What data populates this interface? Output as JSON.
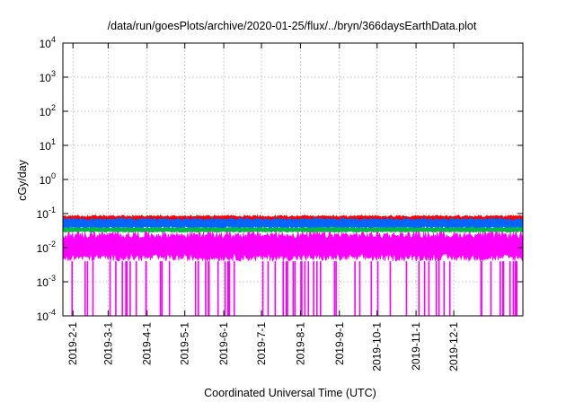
{
  "chart_data": {
    "type": "line",
    "title": "/data/run/goesPlots/archive/2020-01-25/flux/../bryn/366daysEarthData.plot",
    "xlabel": "Coordinated Universal Time (UTC)",
    "ylabel": "cGy/day",
    "yscale": "log",
    "ylim": [
      0.0001,
      10000
    ],
    "y_ticks": [
      {
        "value": 0.0001,
        "base": "10",
        "exp": "-4"
      },
      {
        "value": 0.001,
        "base": "10",
        "exp": "-3"
      },
      {
        "value": 0.01,
        "base": "10",
        "exp": "-2"
      },
      {
        "value": 0.1,
        "base": "10",
        "exp": "-1"
      },
      {
        "value": 1,
        "base": "10",
        "exp": "0"
      },
      {
        "value": 10,
        "base": "10",
        "exp": "1"
      },
      {
        "value": 100,
        "base": "10",
        "exp": "2"
      },
      {
        "value": 1000,
        "base": "10",
        "exp": "3"
      },
      {
        "value": 10000,
        "base": "10",
        "exp": "4"
      }
    ],
    "xlim": [
      "2019-01-24",
      "2020-01-25"
    ],
    "x_ticks": [
      {
        "date": "2019-02-01",
        "label": "2019-2-1"
      },
      {
        "date": "2019-03-01",
        "label": "2019-3-1"
      },
      {
        "date": "2019-04-01",
        "label": "2019-4-1"
      },
      {
        "date": "2019-05-01",
        "label": "2019-5-1"
      },
      {
        "date": "2019-06-01",
        "label": "2019-6-1"
      },
      {
        "date": "2019-07-01",
        "label": "2019-7-1"
      },
      {
        "date": "2019-08-01",
        "label": "2019-8-1"
      },
      {
        "date": "2019-09-01",
        "label": "2019-9-1"
      },
      {
        "date": "2019-10-01",
        "label": "2019-10-1"
      },
      {
        "date": "2019-11-01",
        "label": "2019-11-1"
      },
      {
        "date": "2019-12-01",
        "label": "2019-12-1"
      }
    ],
    "grid": true,
    "legend": "none",
    "series": [
      {
        "color": "#ff0000",
        "typical_low": 0.05,
        "typical_high": 0.09
      },
      {
        "color": "#0066ff",
        "typical_low": 0.035,
        "typical_high": 0.075
      },
      {
        "color": "#00bb44",
        "typical_low": 0.028,
        "typical_high": 0.04
      },
      {
        "color": "#ff00ff",
        "typical_low": 0.004,
        "typical_high": 0.03,
        "dropout_floor": 0.0001
      }
    ]
  }
}
